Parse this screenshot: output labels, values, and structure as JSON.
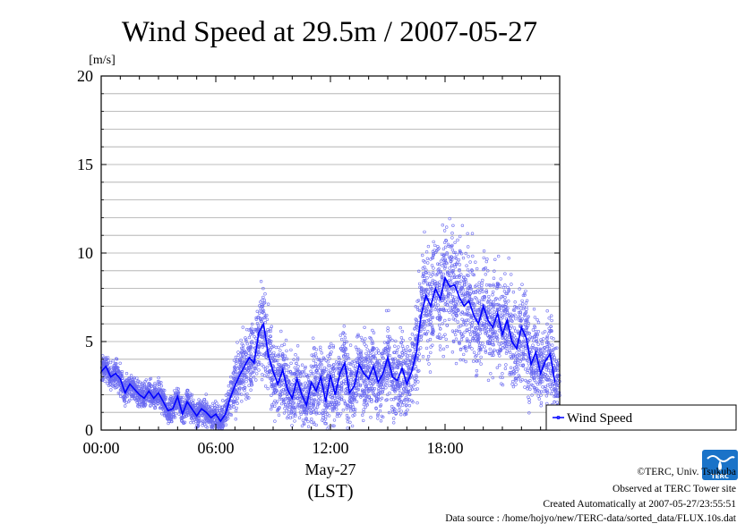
{
  "chart_data": {
    "type": "line+scatter",
    "title": "Wind Speed at 29.5m / 2007-05-27",
    "ylabel": "[m/s]",
    "xlabel": "(LST)",
    "date_label": "May-27",
    "ylim": [
      0,
      20
    ],
    "xlim": [
      "00:00",
      "24:00"
    ],
    "x_ticks": [
      "00:00",
      "06:00",
      "12:00",
      "18:00"
    ],
    "y_ticks": [
      "0",
      "5",
      "10",
      "15",
      "20"
    ],
    "grid": true,
    "legend": {
      "position": "right",
      "label": "Wind Speed"
    },
    "series": [
      {
        "name": "Wind Speed",
        "color": "#0000ff",
        "x_hours": [
          0.0,
          0.25,
          0.5,
          0.75,
          1.0,
          1.25,
          1.5,
          1.75,
          2.0,
          2.25,
          2.5,
          2.75,
          3.0,
          3.25,
          3.5,
          3.75,
          4.0,
          4.25,
          4.5,
          4.75,
          5.0,
          5.25,
          5.5,
          5.75,
          6.0,
          6.25,
          6.5,
          6.75,
          7.0,
          7.25,
          7.5,
          7.75,
          8.0,
          8.25,
          8.5,
          8.75,
          9.0,
          9.25,
          9.5,
          9.75,
          10.0,
          10.25,
          10.5,
          10.75,
          11.0,
          11.25,
          11.5,
          11.75,
          12.0,
          12.25,
          12.5,
          12.75,
          13.0,
          13.25,
          13.5,
          13.75,
          14.0,
          14.25,
          14.5,
          14.75,
          15.0,
          15.25,
          15.5,
          15.75,
          16.0,
          16.25,
          16.5,
          16.75,
          17.0,
          17.25,
          17.5,
          17.75,
          18.0,
          18.25,
          18.5,
          18.75,
          19.0,
          19.25,
          19.5,
          19.75,
          20.0,
          20.25,
          20.5,
          20.75,
          21.0,
          21.25,
          21.5,
          21.75,
          22.0,
          22.25,
          22.5,
          22.75,
          23.0,
          23.25,
          23.5,
          23.75
        ],
        "mean_values": [
          3.3,
          3.6,
          3.0,
          3.2,
          2.9,
          2.1,
          2.6,
          2.3,
          2.0,
          1.8,
          2.2,
          1.8,
          2.1,
          1.6,
          1.1,
          1.2,
          1.9,
          0.9,
          1.6,
          1.2,
          0.8,
          1.2,
          1.0,
          0.7,
          0.9,
          0.5,
          0.9,
          1.8,
          2.5,
          3.1,
          3.6,
          4.1,
          3.8,
          5.5,
          6.0,
          4.2,
          3.3,
          2.6,
          3.4,
          2.3,
          1.8,
          2.9,
          2.0,
          1.4,
          2.7,
          2.2,
          3.0,
          1.6,
          3.1,
          2.0,
          3.2,
          3.8,
          2.1,
          2.5,
          3.7,
          3.2,
          2.9,
          3.6,
          2.7,
          3.2,
          4.1,
          3.0,
          2.8,
          3.5,
          2.6,
          3.3,
          4.4,
          6.5,
          7.6,
          7.0,
          8.0,
          7.4,
          8.6,
          8.1,
          8.2,
          7.5,
          7.0,
          7.3,
          6.5,
          6.0,
          7.0,
          6.2,
          5.8,
          6.6,
          5.4,
          6.2,
          5.0,
          4.6,
          5.8,
          5.2,
          3.7,
          4.4,
          3.2,
          3.9,
          4.3,
          2.7
        ],
        "spread": [
          0.5,
          0.5,
          0.5,
          0.6,
          0.6,
          0.5,
          0.5,
          0.5,
          0.5,
          0.5,
          0.5,
          0.5,
          0.5,
          0.5,
          0.5,
          0.5,
          0.6,
          0.6,
          0.6,
          0.5,
          0.5,
          0.5,
          0.5,
          0.5,
          0.5,
          0.6,
          0.7,
          0.9,
          1.1,
          1.2,
          1.3,
          1.5,
          1.5,
          1.7,
          1.8,
          1.6,
          1.4,
          1.3,
          1.4,
          1.3,
          1.2,
          1.3,
          1.3,
          1.2,
          1.4,
          1.3,
          1.5,
          1.4,
          1.5,
          1.4,
          1.5,
          1.6,
          1.4,
          1.5,
          1.6,
          1.5,
          1.5,
          1.6,
          1.5,
          1.5,
          1.6,
          1.5,
          1.5,
          1.6,
          1.5,
          1.6,
          1.8,
          2.0,
          2.2,
          2.2,
          2.3,
          2.3,
          2.4,
          2.4,
          2.3,
          2.3,
          2.2,
          2.2,
          2.1,
          2.1,
          2.1,
          2.1,
          2.0,
          2.0,
          2.0,
          1.9,
          1.9,
          1.8,
          1.8,
          1.8,
          1.7,
          1.6,
          1.6,
          1.6,
          1.5,
          1.4
        ]
      }
    ],
    "samples_per_interval": 55,
    "colors": {
      "line": "#0000ff",
      "points": "#6a6af0",
      "grid": "#a9a9a9",
      "axis": "#000000"
    }
  },
  "credits": [
    "©TERC, Univ. Tsukuba",
    "Observed at TERC Tower site",
    "Created Automatically at 2007-05-27/23:55:51",
    "Data source : /home/hojyo/new/TERC-data/sorted_data/FLUX.10s.dat"
  ],
  "logo": {
    "name": "terc-logo-icon",
    "text": "TERC"
  }
}
